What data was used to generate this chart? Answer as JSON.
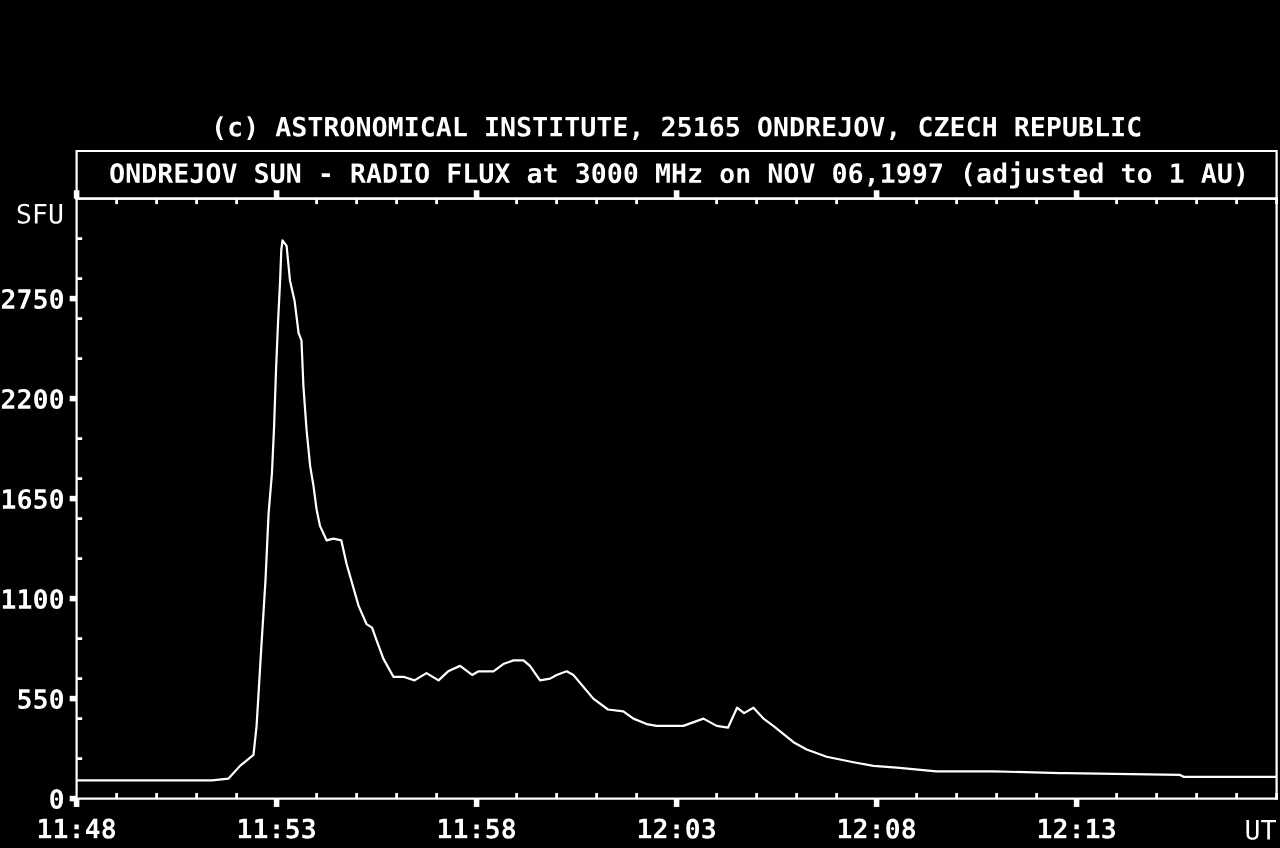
{
  "chart_data": {
    "type": "line",
    "title": "(c) ASTRONOMICAL INSTITUTE, 25165 ONDREJOV, CZECH REPUBLIC",
    "subtitle": "ONDREJOV SUN - RADIO FLUX at 3000 MHz on NOV 06,1997 (adjusted to 1 AU)",
    "xlabel": "UT",
    "ylabel": "SFU",
    "color": "#ffffff",
    "line_style": "solid",
    "x": [
      11.8,
      11.8564,
      11.8633,
      11.8681,
      11.8737,
      11.875,
      11.877,
      11.8787,
      11.88,
      11.8814,
      11.8823,
      11.8831,
      11.8839,
      11.8848,
      11.8853,
      11.8858,
      11.8875,
      11.8889,
      11.8908,
      11.8925,
      11.8937,
      11.8945,
      11.8958,
      11.8973,
      11.8987,
      11.9,
      11.9014,
      11.9042,
      11.907,
      11.9103,
      11.9125,
      11.9175,
      11.9208,
      11.9231,
      11.925,
      11.9278,
      11.932,
      11.9362,
      11.9408,
      11.9458,
      11.9508,
      11.9548,
      11.9598,
      11.9648,
      11.9675,
      11.9737,
      11.9778,
      11.982,
      11.9862,
      11.9889,
      11.9931,
      11.9973,
      12.0,
      12.0042,
      12.007,
      12.0153,
      12.0214,
      12.0278,
      12.032,
      12.0375,
      12.0417,
      12.0528,
      12.0612,
      12.0667,
      12.0714,
      12.0752,
      12.0781,
      12.082,
      12.0862,
      12.0903,
      12.0987,
      12.1042,
      12.1125,
      12.1237,
      12.132,
      12.1417,
      12.1583,
      12.182,
      12.2098,
      12.2125,
      12.2598,
      12.2612,
      12.2862,
      12.3
    ],
    "values": [
      100,
      100,
      110,
      180,
      240,
      400,
      840,
      1200,
      1570,
      1790,
      2050,
      2360,
      2610,
      2850,
      3020,
      3070,
      3040,
      2850,
      2740,
      2560,
      2520,
      2270,
      2030,
      1830,
      1720,
      1590,
      1500,
      1420,
      1430,
      1420,
      1290,
      1060,
      960,
      940,
      870,
      770,
      670,
      670,
      650,
      690,
      650,
      700,
      730,
      680,
      700,
      700,
      740,
      760,
      760,
      730,
      650,
      660,
      680,
      700,
      680,
      550,
      490,
      480,
      440,
      410,
      400,
      400,
      440,
      400,
      390,
      500,
      470,
      500,
      440,
      400,
      310,
      270,
      230,
      200,
      180,
      170,
      150,
      150,
      140,
      140,
      130,
      120,
      120,
      120
    ],
    "xlim": [
      11.8,
      12.3
    ],
    "ylim": [
      0,
      3300
    ],
    "xticks": [
      {
        "value": 11.8,
        "label": "11:48"
      },
      {
        "value": 11.816667,
        "label": null
      },
      {
        "value": 11.833333,
        "label": null
      },
      {
        "value": 11.85,
        "label": null
      },
      {
        "value": 11.866667,
        "label": null
      },
      {
        "value": 11.883333,
        "label": "11:53"
      },
      {
        "value": 11.9,
        "label": null
      },
      {
        "value": 11.916667,
        "label": null
      },
      {
        "value": 11.933333,
        "label": null
      },
      {
        "value": 11.95,
        "label": null
      },
      {
        "value": 11.966667,
        "label": "11:58"
      },
      {
        "value": 11.983333,
        "label": null
      },
      {
        "value": 12.0,
        "label": null
      },
      {
        "value": 12.016667,
        "label": null
      },
      {
        "value": 12.033333,
        "label": null
      },
      {
        "value": 12.05,
        "label": "12:03"
      },
      {
        "value": 12.066667,
        "label": null
      },
      {
        "value": 12.083333,
        "label": null
      },
      {
        "value": 12.1,
        "label": null
      },
      {
        "value": 12.116667,
        "label": null
      },
      {
        "value": 12.133333,
        "label": "12:08"
      },
      {
        "value": 12.15,
        "label": null
      },
      {
        "value": 12.166667,
        "label": null
      },
      {
        "value": 12.183333,
        "label": null
      },
      {
        "value": 12.2,
        "label": null
      },
      {
        "value": 12.216667,
        "label": "12:13"
      },
      {
        "value": 12.233333,
        "label": null
      },
      {
        "value": 12.25,
        "label": null
      },
      {
        "value": 12.266667,
        "label": null
      },
      {
        "value": 12.283333,
        "label": null
      },
      {
        "value": 12.3,
        "label": null
      }
    ],
    "yticks": [
      0,
      {
        "value": 220,
        "label": null
      },
      {
        "value": 440,
        "label": null
      },
      550,
      {
        "value": 660,
        "label": null
      },
      {
        "value": 880,
        "label": null
      },
      1100,
      {
        "value": 1320,
        "label": null
      },
      {
        "value": 1540,
        "label": null
      },
      1650,
      {
        "value": 1760,
        "label": null
      },
      {
        "value": 1980,
        "label": null
      },
      2200,
      {
        "value": 2420,
        "label": null
      },
      {
        "value": 2640,
        "label": null
      },
      2750,
      {
        "value": 2860,
        "label": null
      },
      {
        "value": 3080,
        "label": null
      }
    ]
  }
}
